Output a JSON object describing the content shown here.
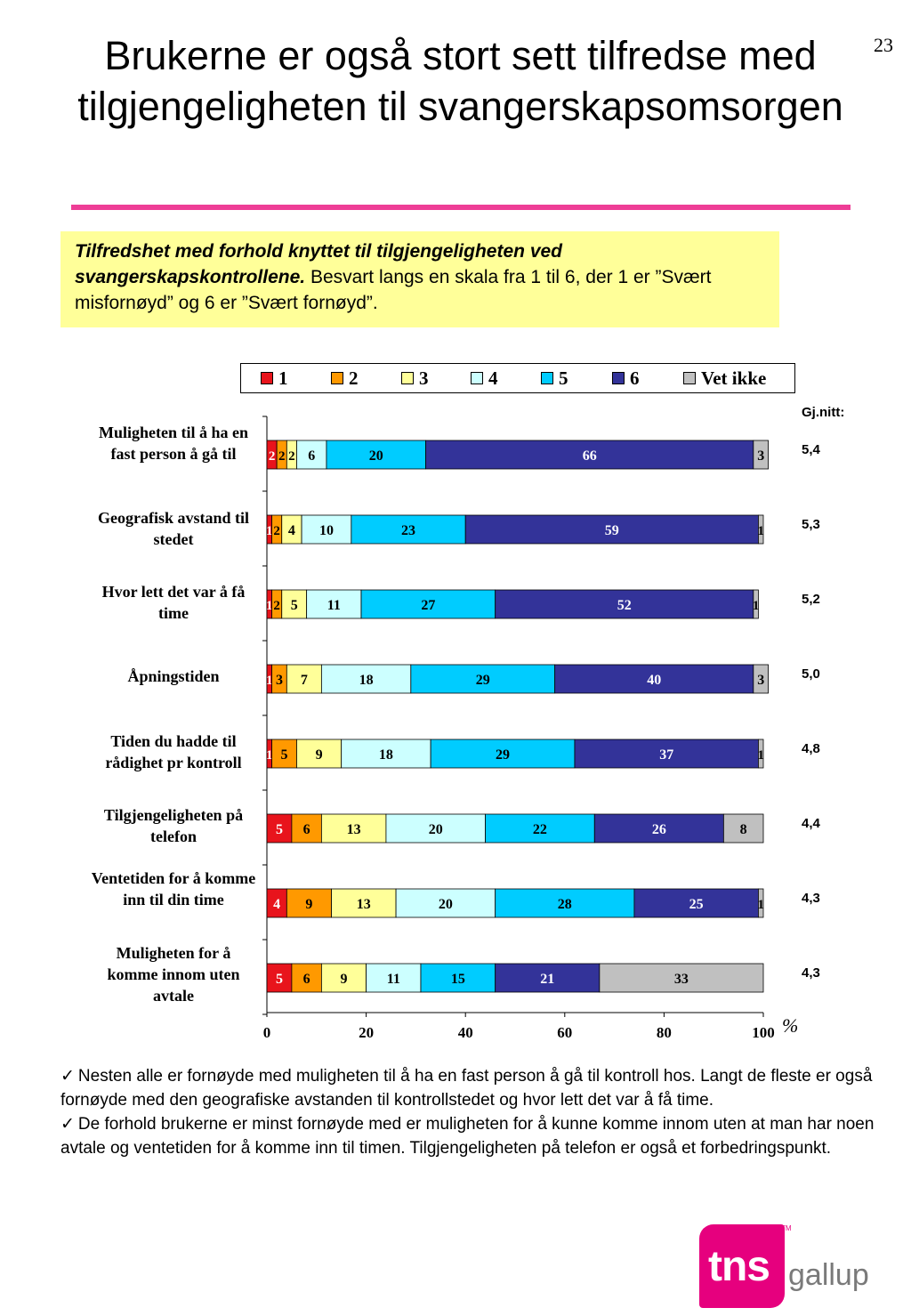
{
  "page_number": "23",
  "title": "Brukerne er også stort sett tilfredse med tilgjengeligheten til svangerskapsomsorgen",
  "intro": {
    "bold_italic": "Tilfredshet med forhold knyttet til tilgjengeligheten ved svangerskapskontrollene.",
    "normal": " Besvart langs en skala fra 1 til 6, der 1 er ”Svært misfornøyd” og 6 er ”Svært fornøyd”."
  },
  "avg_header": "Gj.nitt:",
  "averages": [
    "5,4",
    "5,3",
    "5,2",
    "5,0",
    "4,8",
    "4,4",
    "4,3",
    "4,3"
  ],
  "chart_data": {
    "type": "bar",
    "orientation": "horizontal",
    "stacked": true,
    "categories": [
      "Muligheten til å ha en fast person å gå til",
      "Geografisk avstand til stedet",
      "Hvor lett det var å få time",
      "Åpningstiden",
      "Tiden du hadde til rådighet pr kontroll",
      "Tilgjengeligheten på telefon",
      "Ventetiden for å komme inn til din time",
      "Muligheten for å komme innom uten avtale"
    ],
    "series": [
      {
        "name": "1",
        "color": "#e8141c",
        "label_color": "#ffffff",
        "values": [
          2,
          1,
          1,
          1,
          1,
          5,
          4,
          5
        ]
      },
      {
        "name": "2",
        "color": "#ff9900",
        "label_color": "#000000",
        "values": [
          2,
          2,
          2,
          3,
          5,
          6,
          9,
          6
        ]
      },
      {
        "name": "3",
        "color": "#ffff99",
        "label_color": "#000000",
        "values": [
          2,
          4,
          5,
          7,
          9,
          13,
          13,
          9
        ]
      },
      {
        "name": "4",
        "color": "#ccffff",
        "label_color": "#000000",
        "values": [
          6,
          10,
          11,
          18,
          18,
          20,
          20,
          11
        ]
      },
      {
        "name": "5",
        "color": "#00ccff",
        "label_color": "#000000",
        "values": [
          20,
          23,
          27,
          29,
          29,
          22,
          28,
          15
        ]
      },
      {
        "name": "6",
        "color": "#333399",
        "label_color": "#ffffff",
        "values": [
          66,
          59,
          52,
          40,
          37,
          26,
          25,
          21
        ]
      },
      {
        "name": "Vet ikke",
        "color": "#c0c0c0",
        "label_color": "#000000",
        "values": [
          3,
          1,
          1,
          3,
          1,
          8,
          1,
          33
        ]
      }
    ],
    "xlim": [
      0,
      100
    ],
    "xticks": [
      0,
      20,
      40,
      60,
      80,
      100
    ],
    "xlabel": "%",
    "legend_position": "top"
  },
  "bullets": [
    "Nesten alle er fornøyde med muligheten til å ha en fast person å gå til kontroll hos. Langt de fleste er også fornøyde med den geografiske avstanden til kontrollstedet og hvor lett det var å få time.",
    "De forhold brukerne er minst fornøyde med er muligheten for å kunne komme innom uten at man har noen avtale og ventetiden for å komme inn til timen. Tilgjengeligheten på telefon er også et forbedringspunkt."
  ],
  "logo": {
    "primary": "tns",
    "secondary": "gallup",
    "tm": "TM"
  }
}
